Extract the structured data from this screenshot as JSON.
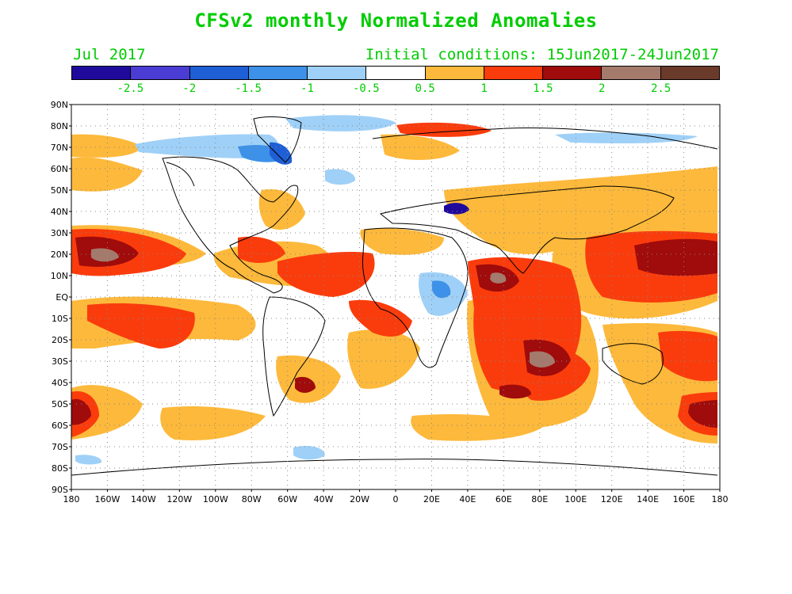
{
  "header": {
    "title": "CFSv2 monthly Normalized Anomalies",
    "month_label": "Jul 2017",
    "initial_conditions": "Initial conditions: 15Jun2017-24Jun2017"
  },
  "legend": {
    "colors": [
      "#1f0a9c",
      "#4b3cd4",
      "#1f5fd6",
      "#3d91e8",
      "#9fd0f7",
      "#ffffff",
      "#fdb93b",
      "#fa3c0c",
      "#a00b0b",
      "#a47a6c",
      "#6a3a2a"
    ],
    "labels": [
      "-2.5",
      "-2",
      "-1.5",
      "-1",
      "-0.5",
      "0.5",
      "1",
      "1.5",
      "2",
      "2.5"
    ]
  },
  "map": {
    "lat_labels": [
      "90N",
      "80N",
      "70N",
      "60N",
      "50N",
      "40N",
      "30N",
      "20N",
      "10N",
      "EQ",
      "10S",
      "20S",
      "30S",
      "40S",
      "50S",
      "60S",
      "70S",
      "80S",
      "90S"
    ],
    "lon_labels": [
      "180",
      "160W",
      "140W",
      "120W",
      "100W",
      "80W",
      "60W",
      "40W",
      "20W",
      "0",
      "20E",
      "40E",
      "60E",
      "80E",
      "100E",
      "120E",
      "140E",
      "160E",
      "180"
    ],
    "anomaly_fill_colors": {
      "low1": "#9fd0f7",
      "low2": "#3d91e8",
      "low3": "#1f5fd6",
      "high1": "#fdb93b",
      "high2": "#fa3c0c",
      "high3": "#a00b0b",
      "high4": "#a47a6c"
    }
  }
}
